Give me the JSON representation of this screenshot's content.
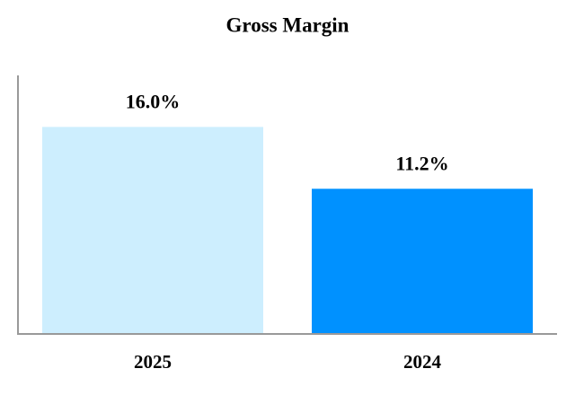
{
  "chart_data": {
    "type": "bar",
    "title": "Gross Margin",
    "categories": [
      "2025",
      "2024"
    ],
    "values": [
      16.0,
      11.2
    ],
    "value_labels": [
      "16.0%",
      "11.2%"
    ],
    "colors": [
      "#cdeefe",
      "#0091ff"
    ],
    "ylim": [
      0,
      20
    ]
  }
}
